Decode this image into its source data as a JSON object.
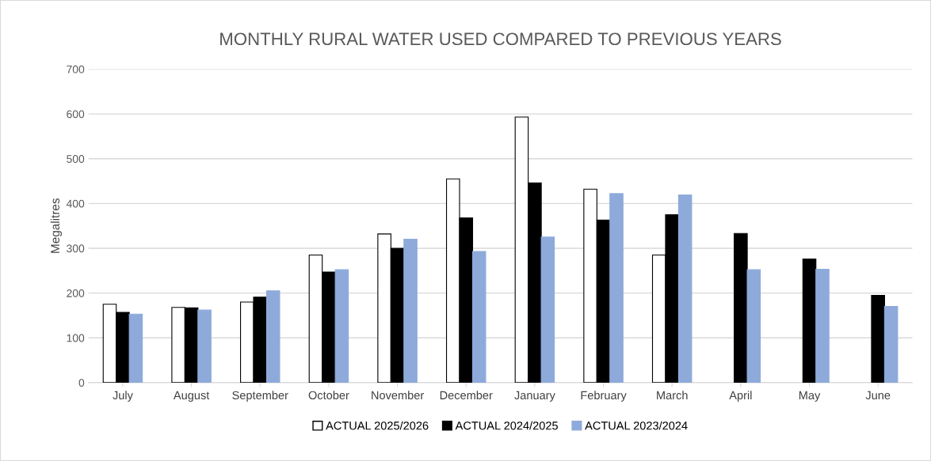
{
  "chart_data": {
    "type": "bar",
    "title": "MONTHLY RURAL WATER USED COMPARED TO PREVIOUS YEARS",
    "ylabel": "Megalitres",
    "categories": [
      "July",
      "August",
      "September",
      "October",
      "November",
      "December",
      "January",
      "February",
      "March",
      "April",
      "May",
      "June"
    ],
    "series": [
      {
        "name": "ACTUAL 2025/2026",
        "color": "#ffffff",
        "values": [
          175,
          168,
          180,
          285,
          332,
          455,
          593,
          432,
          285,
          null,
          null,
          null
        ]
      },
      {
        "name": "ACTUAL 2024/2025",
        "color": "#000000",
        "values": [
          157,
          167,
          191,
          247,
          300,
          368,
          446,
          363,
          375,
          333,
          276,
          195
        ]
      },
      {
        "name": "ACTUAL 2023/2024",
        "color": "#8eaadb",
        "values": [
          153,
          162,
          205,
          252,
          320,
          293,
          325,
          422,
          419,
          252,
          253,
          170
        ]
      }
    ],
    "ylim": [
      0,
      700
    ],
    "yticks": [
      0,
      100,
      200,
      300,
      400,
      500,
      600,
      700
    ],
    "grid": "y",
    "legend": "bottom"
  }
}
